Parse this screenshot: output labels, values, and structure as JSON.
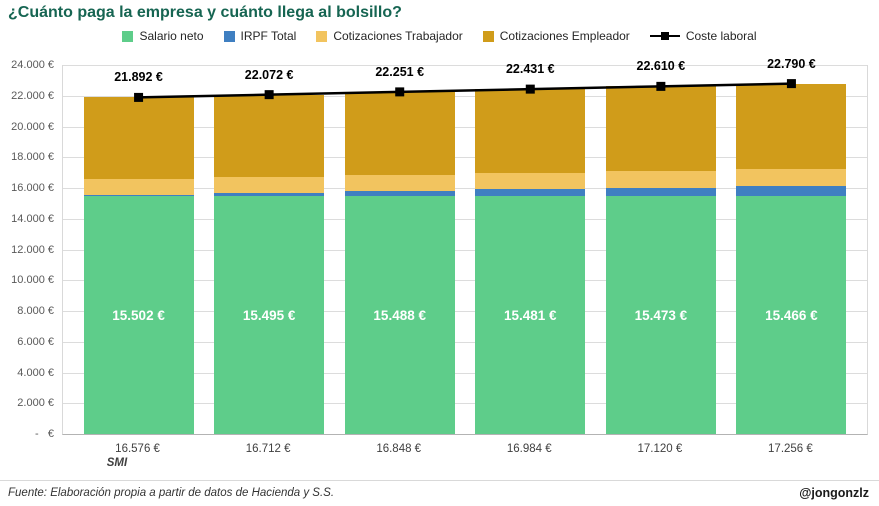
{
  "page": {
    "title": "¿Cuánto paga la empresa y cuánto llega al bolsillo?",
    "footer_source": "Fuente: Elaboración propia a partir de datos de Hacienda y S.S.",
    "footer_handle": "@jongonzlz"
  },
  "legend": [
    {
      "label": "Salario neto",
      "type": "square",
      "color": "#5ecd8a"
    },
    {
      "label": "IRPF Total",
      "type": "square",
      "color": "#3f7fc1"
    },
    {
      "label": "Cotizaciones Trabajador",
      "type": "square",
      "color": "#f2c45f"
    },
    {
      "label": "Cotizaciones Empleador",
      "type": "square",
      "color": "#d09c1a"
    },
    {
      "label": "Coste laboral",
      "type": "line-marker",
      "color": "#000000"
    }
  ],
  "chart_data": {
    "type": "bar",
    "subtype": "stacked-bars-with-line-overlay",
    "title": "¿Cuánto paga la empresa y cuánto llega al bolsillo?",
    "categories": [
      "16.576 €",
      "16.712 €",
      "16.848 €",
      "16.984 €",
      "17.120 €",
      "17.256 €"
    ],
    "category_note": {
      "index": 0,
      "label": "SMI"
    },
    "xlabel": "",
    "ylabel": "",
    "ylim": [
      0,
      24000
    ],
    "grid": true,
    "legend_position": "top",
    "yticks": {
      "values": [
        24000,
        22000,
        20000,
        18000,
        16000,
        14000,
        12000,
        10000,
        8000,
        6000,
        4000,
        2000,
        0
      ],
      "labels": [
        "24.000 €",
        "22.000 €",
        "20.000 €",
        "18.000 €",
        "16.000 €",
        "14.000 €",
        "12.000 €",
        "10.000 €",
        "8.000 €",
        "6.000 €",
        "4.000 €",
        "2.000 €",
        "-   €"
      ]
    },
    "series": [
      {
        "name": "Salario neto",
        "color": "#5ecd8a",
        "values": [
          15502,
          15495,
          15488,
          15481,
          15473,
          15466
        ],
        "labels": [
          "15.502 €",
          "15.495 €",
          "15.488 €",
          "15.481 €",
          "15.473 €",
          "15.466 €"
        ]
      },
      {
        "name": "IRPF Total",
        "color": "#3f7fc1",
        "values": [
          21,
          156,
          290,
          425,
          560,
          694
        ]
      },
      {
        "name": "Cotizaciones Trabajador",
        "color": "#f2c45f",
        "values": [
          1053,
          1061,
          1070,
          1078,
          1087,
          1096
        ]
      },
      {
        "name": "Cotizaciones Empleador",
        "color": "#d09c1a",
        "values": [
          5316,
          5360,
          5403,
          5447,
          5490,
          5534
        ]
      }
    ],
    "line": {
      "name": "Coste laboral",
      "color": "#000000",
      "values": [
        21892,
        22072,
        22251,
        22431,
        22610,
        22790
      ],
      "labels": [
        "21.892 €",
        "22.072 €",
        "22.251 €",
        "22.431 €",
        "22.610 €",
        "22.790 €"
      ]
    }
  }
}
